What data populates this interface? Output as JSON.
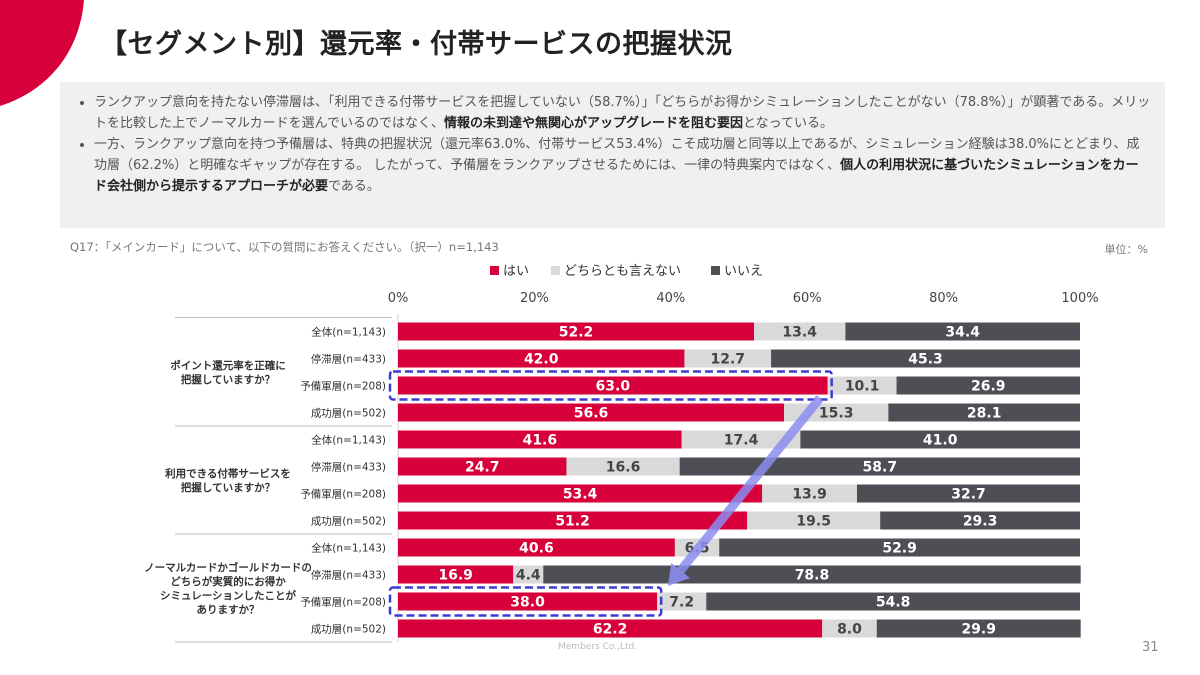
{
  "title": "【セグメント別】還元率・付帯サービスの把握状況",
  "summary": {
    "b1_t1": "ランクアップ意向を持たない停滞層は、「利用できる付帯サービスを把握していない（58.7%）」「どちらがお得かシミュレーションしたことがない（78.8%）」が顕著である。メリットを比較した上でノーマルカードを選んでいるのではなく、",
    "b1_bold": "情報の未到達や無関心がアップグレードを阻む要因",
    "b1_t2": "となっている。",
    "b2_t1": "一方、ランクアップ意向を持つ予備層は、特典の把握状況（還元率63.0%、付帯サービス53.4%）こそ成功層と同等以上であるが、シミュレーション経験は38.0%にとどまり、成功層（62.2%）と明確なギャップが存在する。 したがって、予備層をランクアップさせるためには、一律の特典案内ではなく、",
    "b2_bold": "個人の利用状況に基づいたシミュレーションをカード会社側から提示するアプローチが必要",
    "b2_t2": "である。"
  },
  "question": "Q17：「メインカード」について、以下の質問にお答えください。（択一）n=1,143",
  "unit": "単位：%",
  "footer": "Members Co.,Ltd.",
  "page_number": "31",
  "colors": {
    "brand": "#d7003a",
    "yes": "#d7003a",
    "neutral": "#d9d9d9",
    "no": "#4d4f55",
    "highlight": "#3b3bd4",
    "arrow": "#8c8cf0"
  },
  "chart_data": {
    "type": "bar",
    "orientation": "horizontal",
    "stacked": true,
    "xlim": [
      0,
      100
    ],
    "x_ticks": [
      "0%",
      "20%",
      "40%",
      "60%",
      "80%",
      "100%"
    ],
    "legend": [
      "はい",
      "どちらとも言えない",
      "いいえ"
    ],
    "legend_position": "top",
    "groups": [
      {
        "label": "ポイント還元率を正確に\n把握していますか？",
        "rows": [
          {
            "label": "全体(n=1,143)",
            "values": [
              52.2,
              13.4,
              34.4
            ]
          },
          {
            "label": "停滞層(n=433)",
            "values": [
              42.0,
              12.7,
              45.3
            ]
          },
          {
            "label": "予備軍層(n=208)",
            "values": [
              63.0,
              10.1,
              26.9
            ],
            "highlight": true
          },
          {
            "label": "成功層(n=502)",
            "values": [
              56.6,
              15.3,
              28.1
            ]
          }
        ]
      },
      {
        "label": "利用できる付帯サービスを\n把握していますか？",
        "rows": [
          {
            "label": "全体(n=1,143)",
            "values": [
              41.6,
              17.4,
              41.0
            ]
          },
          {
            "label": "停滞層(n=433)",
            "values": [
              24.7,
              16.6,
              58.7
            ]
          },
          {
            "label": "予備軍層(n=208)",
            "values": [
              53.4,
              13.9,
              32.7
            ]
          },
          {
            "label": "成功層(n=502)",
            "values": [
              51.2,
              19.5,
              29.3
            ]
          }
        ]
      },
      {
        "label": "ノーマルカードかゴールドカードの\nどちらが実質的にお得か\nシミュレーションしたことが\nありますか？",
        "rows": [
          {
            "label": "全体(n=1,143)",
            "values": [
              40.6,
              6.5,
              52.9
            ]
          },
          {
            "label": "停滞層(n=433)",
            "values": [
              16.9,
              4.4,
              78.8
            ]
          },
          {
            "label": "予備軍層(n=208)",
            "values": [
              38.0,
              7.2,
              54.8
            ],
            "highlight": true
          },
          {
            "label": "成功層(n=502)",
            "values": [
              62.2,
              8.0,
              29.9
            ]
          }
        ]
      }
    ]
  }
}
